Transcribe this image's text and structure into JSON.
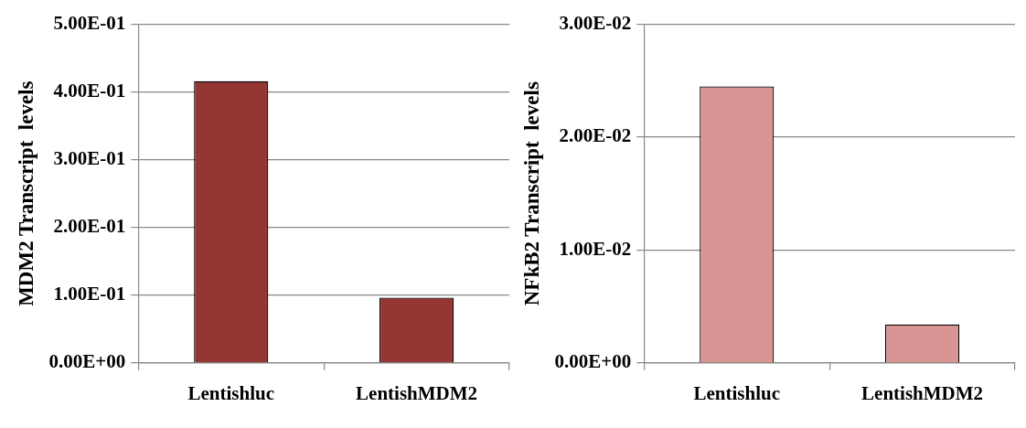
{
  "chart_data": [
    {
      "type": "bar",
      "ylabel": "MDM2 Transcript  levels",
      "categories": [
        "Lentishluc",
        "LentishMDM2"
      ],
      "values": [
        0.416,
        0.0964
      ],
      "color": "#943634",
      "ylim": [
        0,
        0.5
      ],
      "yticks": [
        {
          "value": 0,
          "label": "0.00E+00"
        },
        {
          "value": 0.1,
          "label": "1.00E-01"
        },
        {
          "value": 0.2,
          "label": "2.00E-01"
        },
        {
          "value": 0.3,
          "label": "3.00E-01"
        },
        {
          "value": 0.4,
          "label": "4.00E-01"
        },
        {
          "value": 0.5,
          "label": "5.00E-01"
        }
      ],
      "grid": "y",
      "legend": false
    },
    {
      "type": "bar",
      "ylabel": "NFkB2 Transcript  levels",
      "categories": [
        "Lentishluc",
        "LentishMDM2"
      ],
      "values": [
        0.0245,
        0.0034
      ],
      "color": "#d99594",
      "ylim": [
        0,
        0.03
      ],
      "yticks": [
        {
          "value": 0,
          "label": "0.00E+00"
        },
        {
          "value": 0.01,
          "label": "1.00E-02"
        },
        {
          "value": 0.02,
          "label": "2.00E-02"
        },
        {
          "value": 0.03,
          "label": "3.00E-02"
        }
      ],
      "grid": "y",
      "legend": false
    }
  ]
}
